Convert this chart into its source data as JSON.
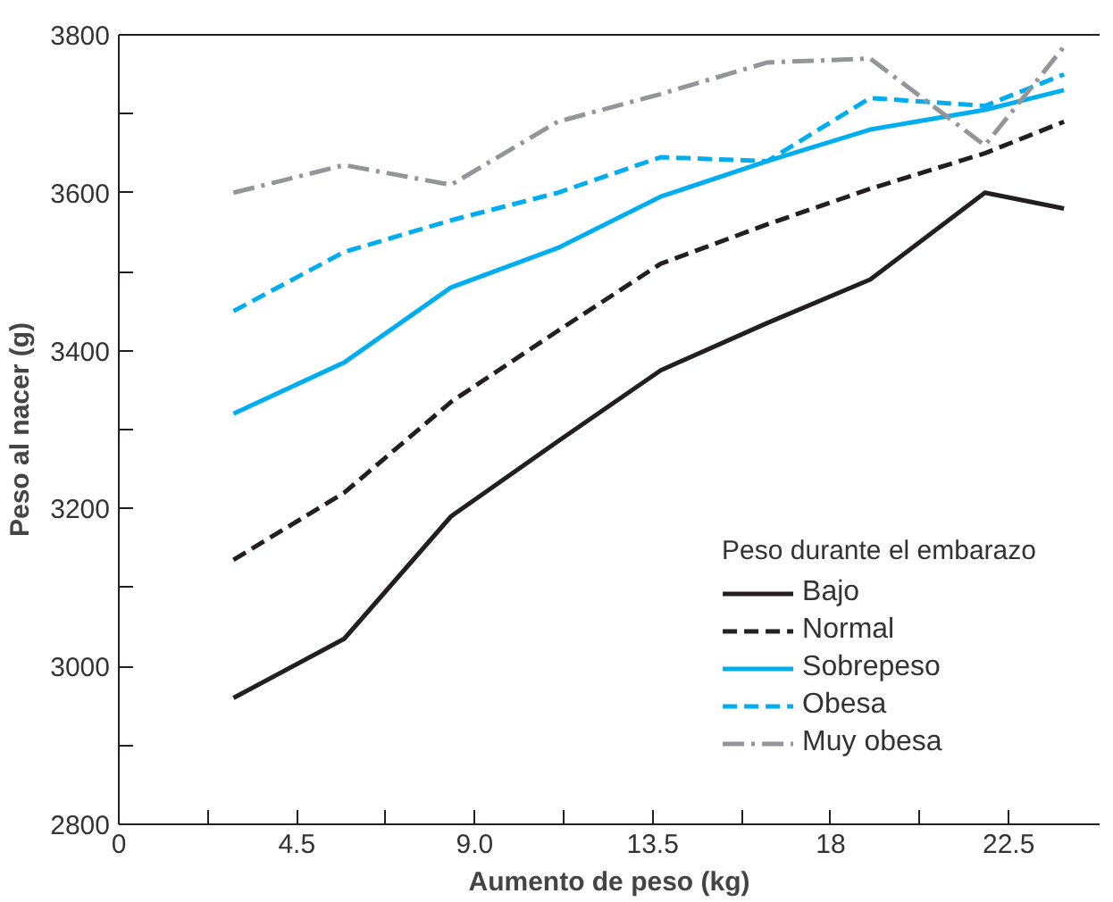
{
  "chart_data": {
    "type": "line",
    "xlabel": "Aumento de peso (kg)",
    "ylabel": "Peso al nacer (g)",
    "legend_title": "Peso durante el embarazo",
    "x": [
      2.9,
      5.7,
      8.4,
      11.1,
      13.7,
      16.4,
      19.0,
      21.9,
      23.9
    ],
    "series": [
      {
        "name": "Bajo",
        "color": "#231f20",
        "line_style": "solid",
        "values": [
          2960,
          3035,
          3190,
          3285,
          3375,
          3435,
          3490,
          3600,
          3580
        ]
      },
      {
        "name": "Normal",
        "color": "#231f20",
        "line_style": "dashed",
        "values": [
          3135,
          3220,
          3335,
          3425,
          3510,
          3560,
          3605,
          3650,
          3690
        ]
      },
      {
        "name": "Sobrepeso",
        "color": "#00aeef",
        "line_style": "solid",
        "values": [
          3320,
          3385,
          3480,
          3530,
          3595,
          3640,
          3680,
          3705,
          3730
        ]
      },
      {
        "name": "Obesa",
        "color": "#00aeef",
        "line_style": "dashed",
        "values": [
          3450,
          3525,
          3565,
          3600,
          3645,
          3640,
          3720,
          3710,
          3750
        ]
      },
      {
        "name": "Muy obesa",
        "color": "#939598",
        "line_style": "dashdot",
        "values": [
          3600,
          3635,
          3610,
          3690,
          3725,
          3765,
          3770,
          3660,
          3785
        ]
      }
    ],
    "xlim": [
      0,
      24.8
    ],
    "ylim": [
      2800,
      3800
    ],
    "xticks": [
      0,
      {
        "value": 2.25,
        "label": null
      },
      4.5,
      {
        "value": 6.75,
        "label": null
      },
      {
        "value": 9,
        "label": "9.0"
      },
      {
        "value": 11.25,
        "label": null
      },
      13.5,
      {
        "value": 15.75,
        "label": null
      },
      18,
      {
        "value": 20.25,
        "label": null
      },
      22.5
    ],
    "yticks": [
      2800,
      {
        "value": 2900,
        "label": null
      },
      3000,
      {
        "value": 3100,
        "label": null
      },
      3200,
      {
        "value": 3300,
        "label": null
      },
      3400,
      {
        "value": 3500,
        "label": null
      },
      3600,
      {
        "value": 3700,
        "label": null
      },
      3800
    ],
    "grid": false,
    "legend": "bottom right",
    "marker": "none"
  }
}
